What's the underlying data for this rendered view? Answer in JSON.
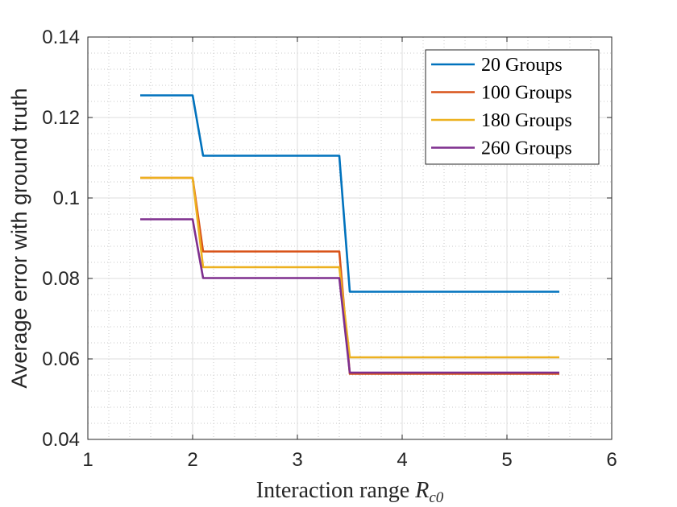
{
  "chart_data": {
    "type": "line",
    "title": "",
    "xlabel": "Interaction range ",
    "xlabel_symbol": "R",
    "xlabel_subscript": "c0",
    "ylabel": "Average error with ground truth",
    "xlim": [
      1,
      6
    ],
    "ylim": [
      0.04,
      0.14
    ],
    "xticks": [
      "1",
      "2",
      "3",
      "4",
      "5",
      "6"
    ],
    "yticks": [
      "0.04",
      "0.06",
      "0.08",
      "0.1",
      "0.12",
      "0.14"
    ],
    "grid": true,
    "minor_grid": true,
    "legend_position": "top-right",
    "series": [
      {
        "name": "20 Groups",
        "color": "#0072BD",
        "points": [
          [
            1.5,
            0.1255
          ],
          [
            2.0,
            0.1255
          ],
          [
            2.1,
            0.1105
          ],
          [
            3.4,
            0.1105
          ],
          [
            3.5,
            0.0767
          ],
          [
            5.5,
            0.0767
          ]
        ]
      },
      {
        "name": "100 Groups",
        "color": "#D95319",
        "points": [
          [
            1.5,
            0.105
          ],
          [
            2.0,
            0.105
          ],
          [
            2.1,
            0.0867
          ],
          [
            3.4,
            0.0867
          ],
          [
            3.5,
            0.0563
          ],
          [
            5.5,
            0.0563
          ]
        ]
      },
      {
        "name": "180 Groups",
        "color": "#EDB120",
        "points": [
          [
            1.5,
            0.105
          ],
          [
            2.0,
            0.105
          ],
          [
            2.1,
            0.0828
          ],
          [
            3.4,
            0.0828
          ],
          [
            3.5,
            0.0604
          ],
          [
            5.5,
            0.0604
          ]
        ]
      },
      {
        "name": "260 Groups",
        "color": "#7E2F8E",
        "points": [
          [
            1.5,
            0.0947
          ],
          [
            2.0,
            0.0947
          ],
          [
            2.1,
            0.0801
          ],
          [
            3.4,
            0.0801
          ],
          [
            3.5,
            0.0566
          ],
          [
            5.5,
            0.0566
          ]
        ]
      }
    ]
  }
}
